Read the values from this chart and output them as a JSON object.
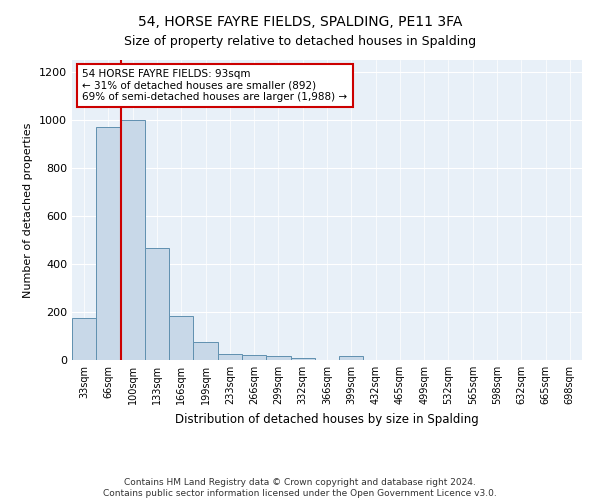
{
  "title": "54, HORSE FAYRE FIELDS, SPALDING, PE11 3FA",
  "subtitle": "Size of property relative to detached houses in Spalding",
  "xlabel": "Distribution of detached houses by size in Spalding",
  "ylabel": "Number of detached properties",
  "bar_labels": [
    "33sqm",
    "66sqm",
    "100sqm",
    "133sqm",
    "166sqm",
    "199sqm",
    "233sqm",
    "266sqm",
    "299sqm",
    "332sqm",
    "366sqm",
    "399sqm",
    "432sqm",
    "465sqm",
    "499sqm",
    "532sqm",
    "565sqm",
    "598sqm",
    "632sqm",
    "665sqm",
    "698sqm"
  ],
  "bar_values": [
    175,
    970,
    1000,
    465,
    185,
    75,
    25,
    20,
    15,
    10,
    0,
    15,
    0,
    0,
    0,
    0,
    0,
    0,
    0,
    0,
    0
  ],
  "bar_color": "#c8d8e8",
  "bar_edge_color": "#6090b0",
  "ylim": [
    0,
    1250
  ],
  "yticks": [
    0,
    200,
    400,
    600,
    800,
    1000,
    1200
  ],
  "property_line_color": "#cc0000",
  "annotation_text": "54 HORSE FAYRE FIELDS: 93sqm\n← 31% of detached houses are smaller (892)\n69% of semi-detached houses are larger (1,988) →",
  "annotation_box_color": "#ffffff",
  "annotation_box_edge": "#cc0000",
  "footer_text": "Contains HM Land Registry data © Crown copyright and database right 2024.\nContains public sector information licensed under the Open Government Licence v3.0.",
  "background_color": "#ffffff",
  "plot_bg_color": "#e8f0f8"
}
